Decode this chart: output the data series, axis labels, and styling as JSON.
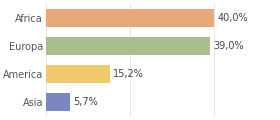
{
  "categories": [
    "Asia",
    "America",
    "Europa",
    "Africa"
  ],
  "values": [
    5.7,
    15.2,
    39.0,
    40.0
  ],
  "bar_colors": [
    "#7b87c0",
    "#f0c96a",
    "#a8be8c",
    "#e8a87c"
  ],
  "labels": [
    "5,7%",
    "15,2%",
    "39,0%",
    "40,0%"
  ],
  "xlim": [
    0,
    55
  ],
  "background_color": "#ffffff",
  "label_fontsize": 7.0,
  "tick_fontsize": 7.0,
  "bar_height": 0.65
}
